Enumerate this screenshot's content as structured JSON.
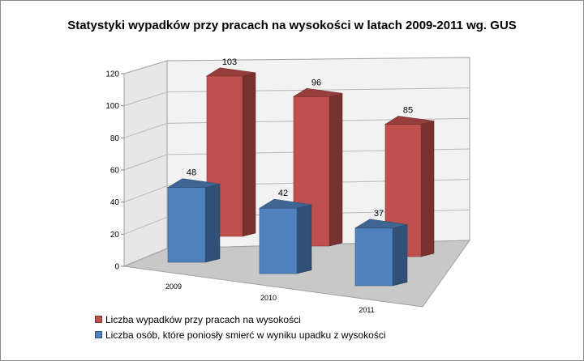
{
  "chart_data": {
    "type": "bar",
    "title": "Statystyki wypadków przy pracach na wysokości w latach 2009-2011 wg. GUS",
    "categories": [
      "2009",
      "2010",
      "2011"
    ],
    "ylim": [
      0,
      120
    ],
    "yticks": [
      0,
      20,
      40,
      60,
      80,
      100,
      120
    ],
    "grid": true,
    "legend_position": "bottom-left",
    "series": [
      {
        "name": "Liczba wypadków przy pracach na wysokości",
        "values": [
          103,
          96,
          85
        ],
        "color": "#c0504d"
      },
      {
        "name": "Liczba osób, które poniosły smierć w wyniku upadku z wysokości",
        "values": [
          48,
          42,
          37
        ],
        "color": "#4f81bd"
      }
    ]
  }
}
